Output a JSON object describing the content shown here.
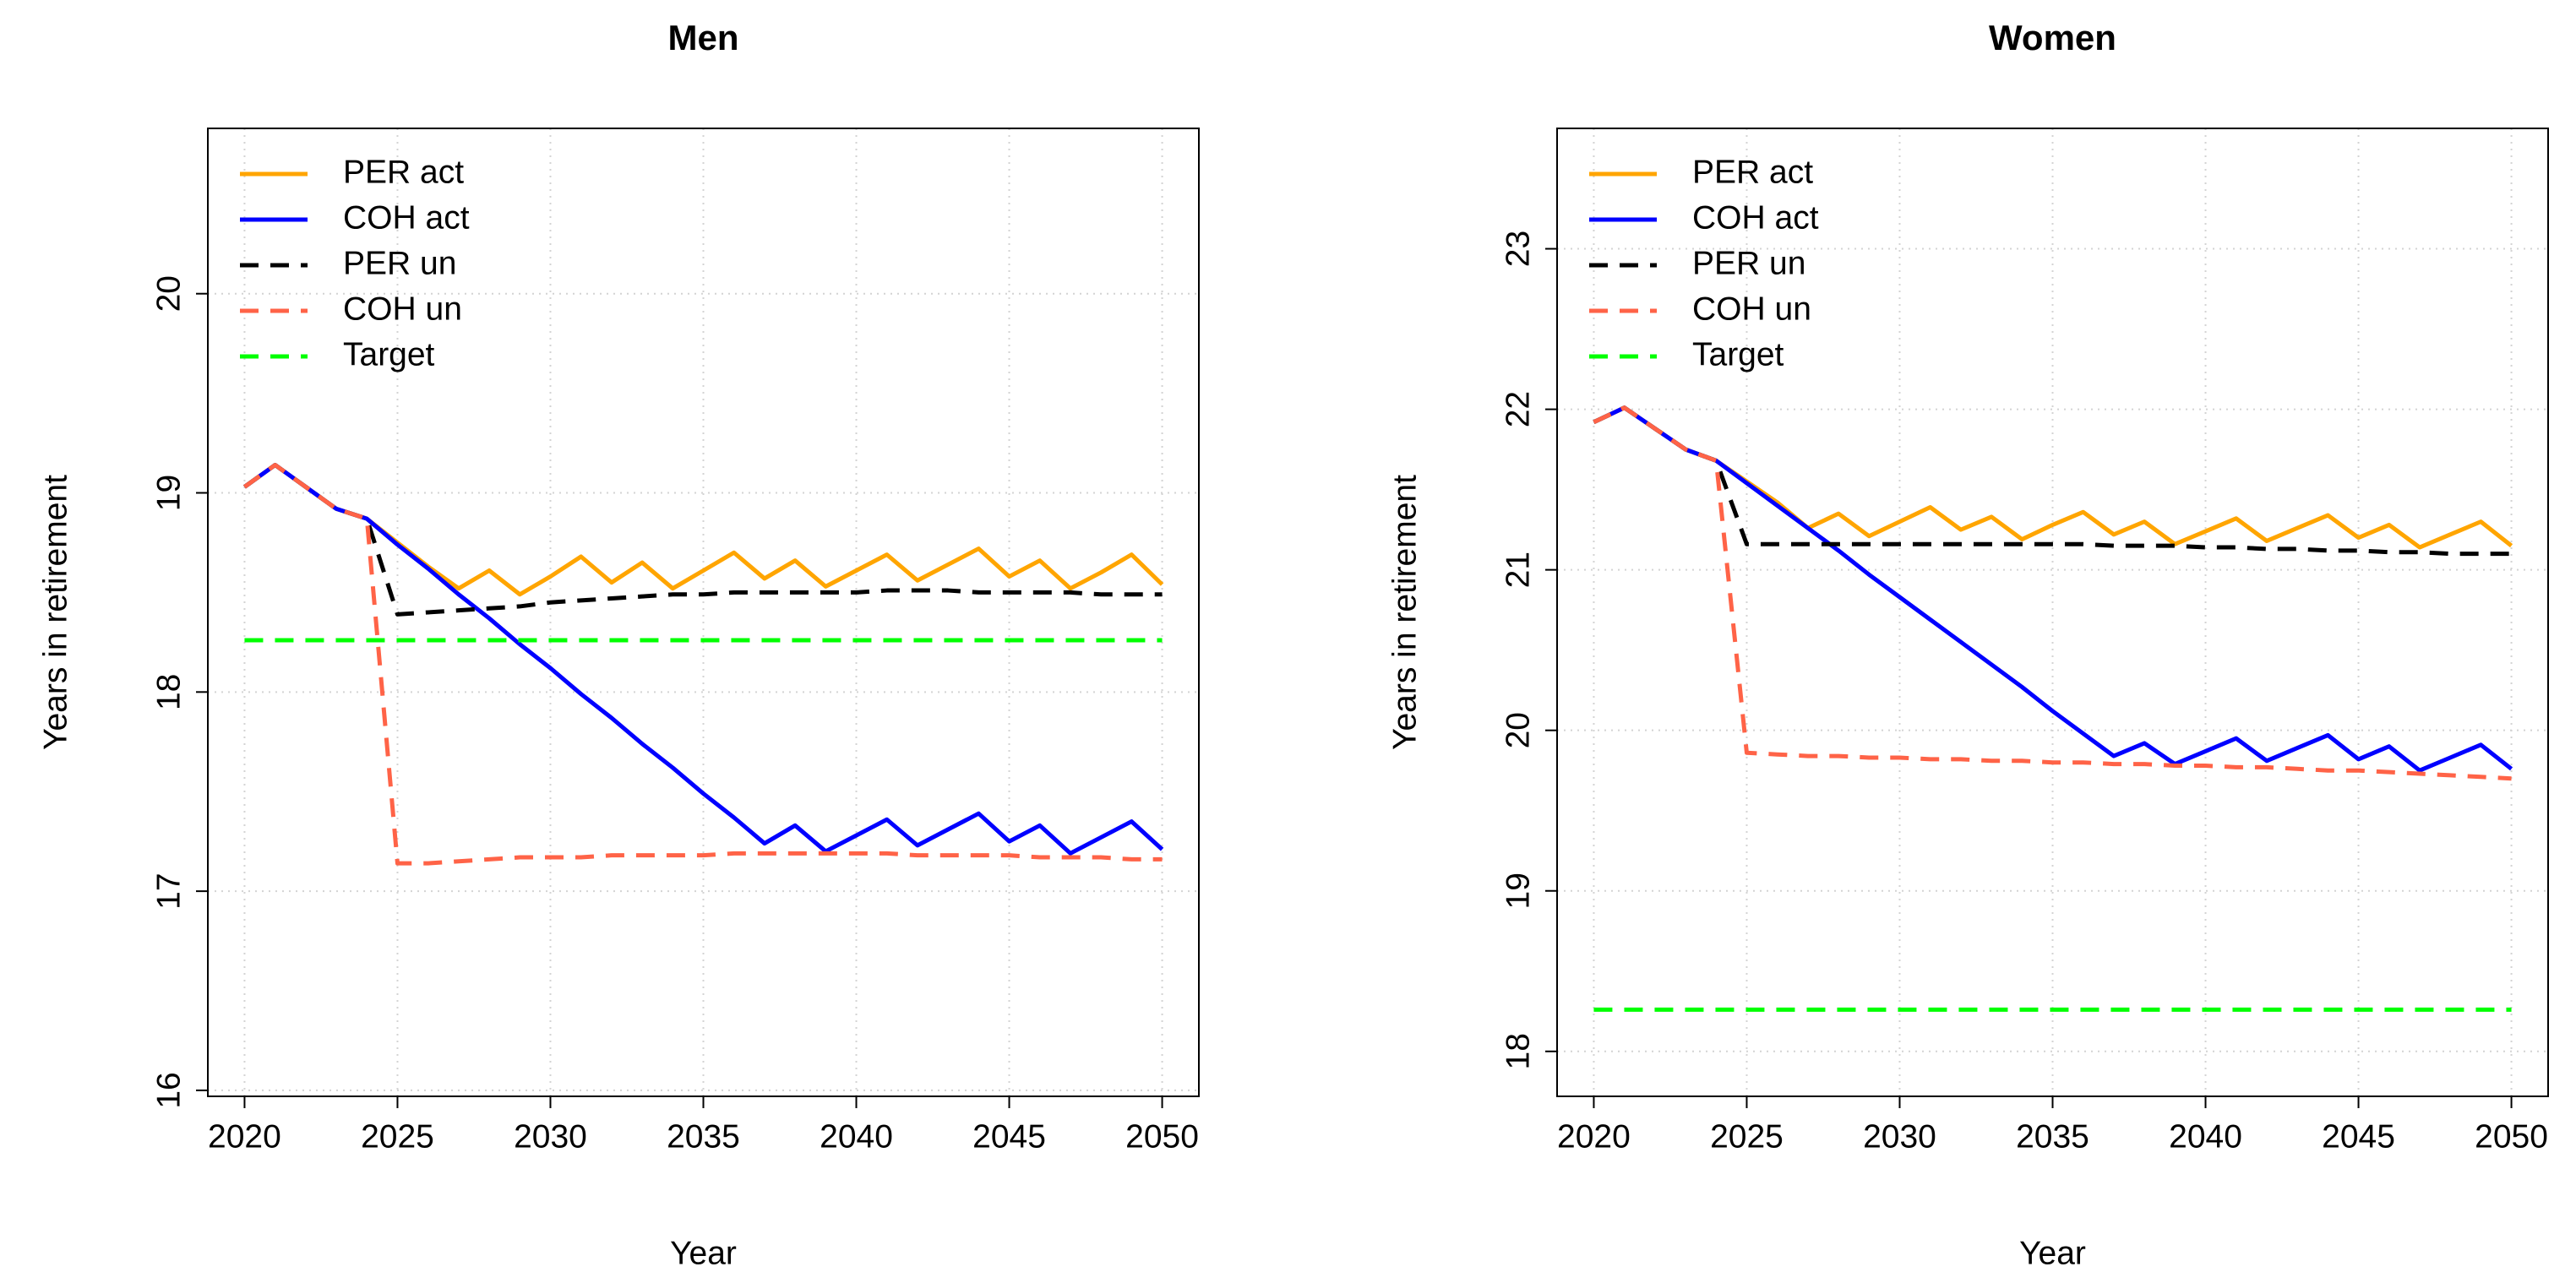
{
  "chart_data": [
    {
      "type": "line",
      "title": "Men",
      "x_label": "Year",
      "y_label": "Years in retirement",
      "x": [
        2020,
        2021,
        2022,
        2023,
        2024,
        2025,
        2026,
        2027,
        2028,
        2029,
        2030,
        2031,
        2032,
        2033,
        2034,
        2035,
        2036,
        2037,
        2038,
        2039,
        2040,
        2041,
        2042,
        2043,
        2044,
        2045,
        2046,
        2047,
        2048,
        2049,
        2050
      ],
      "xlim": [
        2018.8,
        2051.2
      ],
      "xticks": [
        2020,
        2025,
        2030,
        2035,
        2040,
        2045,
        2050
      ],
      "ylim": [
        15.97,
        20.83
      ],
      "yticks": [
        16,
        17,
        18,
        19,
        20
      ],
      "grid": true,
      "legend": "top-left",
      "series": [
        {
          "name": "PER act",
          "color": "#FFA500",
          "linestyle": "solid",
          "values": [
            19.03,
            19.14,
            19.03,
            18.92,
            18.87,
            18.75,
            18.63,
            18.52,
            18.61,
            18.49,
            18.58,
            18.68,
            18.55,
            18.65,
            18.52,
            18.61,
            18.7,
            18.57,
            18.66,
            18.53,
            18.61,
            18.69,
            18.56,
            18.64,
            18.72,
            18.58,
            18.66,
            18.52,
            18.6,
            18.69,
            18.54
          ]
        },
        {
          "name": "COH act",
          "color": "#0000FF",
          "linestyle": "solid",
          "values": [
            19.03,
            19.14,
            19.03,
            18.92,
            18.87,
            18.74,
            18.62,
            18.49,
            18.37,
            18.24,
            18.12,
            17.99,
            17.87,
            17.74,
            17.62,
            17.49,
            17.37,
            17.24,
            17.33,
            17.2,
            17.28,
            17.36,
            17.23,
            17.31,
            17.39,
            17.25,
            17.33,
            17.19,
            17.27,
            17.35,
            17.21
          ]
        },
        {
          "name": "PER un",
          "color": "#000000",
          "linestyle": "dashed",
          "values": [
            19.03,
            19.14,
            19.03,
            18.92,
            18.87,
            18.39,
            18.4,
            18.41,
            18.42,
            18.43,
            18.45,
            18.46,
            18.47,
            18.48,
            18.49,
            18.49,
            18.5,
            18.5,
            18.5,
            18.5,
            18.5,
            18.51,
            18.51,
            18.51,
            18.5,
            18.5,
            18.5,
            18.5,
            18.49,
            18.49,
            18.49
          ]
        },
        {
          "name": "COH un",
          "color": "#FF6347",
          "linestyle": "dashed",
          "values": [
            19.03,
            19.14,
            19.03,
            18.92,
            18.87,
            17.14,
            17.14,
            17.15,
            17.16,
            17.17,
            17.17,
            17.17,
            17.18,
            17.18,
            17.18,
            17.18,
            17.19,
            17.19,
            17.19,
            17.19,
            17.19,
            17.19,
            17.18,
            17.18,
            17.18,
            17.18,
            17.17,
            17.17,
            17.17,
            17.16,
            17.16
          ]
        },
        {
          "name": "Target",
          "color": "#00FF00",
          "linestyle": "dashed",
          "values": [
            18.26,
            18.26,
            18.26,
            18.26,
            18.26,
            18.26,
            18.26,
            18.26,
            18.26,
            18.26,
            18.26,
            18.26,
            18.26,
            18.26,
            18.26,
            18.26,
            18.26,
            18.26,
            18.26,
            18.26,
            18.26,
            18.26,
            18.26,
            18.26,
            18.26,
            18.26,
            18.26,
            18.26,
            18.26,
            18.26,
            18.26
          ]
        }
      ]
    },
    {
      "type": "line",
      "title": "Women",
      "x_label": "Year",
      "y_label": "Years in retirement",
      "x": [
        2020,
        2021,
        2022,
        2023,
        2024,
        2025,
        2026,
        2027,
        2028,
        2029,
        2030,
        2031,
        2032,
        2033,
        2034,
        2035,
        2036,
        2037,
        2038,
        2039,
        2040,
        2041,
        2042,
        2043,
        2044,
        2045,
        2046,
        2047,
        2048,
        2049,
        2050
      ],
      "xlim": [
        2018.8,
        2051.2
      ],
      "xticks": [
        2020,
        2025,
        2030,
        2035,
        2040,
        2045,
        2050
      ],
      "ylim": [
        17.72,
        23.75
      ],
      "yticks": [
        18,
        19,
        20,
        21,
        22,
        23
      ],
      "grid": true,
      "legend": "top-left",
      "series": [
        {
          "name": "PER act",
          "color": "#FFA500",
          "linestyle": "solid",
          "values": [
            21.92,
            22.01,
            21.88,
            21.75,
            21.68,
            21.55,
            21.42,
            21.26,
            21.35,
            21.21,
            21.3,
            21.39,
            21.25,
            21.33,
            21.19,
            21.28,
            21.36,
            21.22,
            21.3,
            21.16,
            21.24,
            21.32,
            21.18,
            21.26,
            21.34,
            21.2,
            21.28,
            21.14,
            21.22,
            21.3,
            21.15
          ]
        },
        {
          "name": "COH act",
          "color": "#0000FF",
          "linestyle": "solid",
          "values": [
            21.92,
            22.01,
            21.88,
            21.75,
            21.68,
            21.54,
            21.4,
            21.26,
            21.12,
            20.97,
            20.83,
            20.69,
            20.55,
            20.41,
            20.27,
            20.12,
            19.98,
            19.84,
            19.92,
            19.79,
            19.87,
            19.95,
            19.81,
            19.89,
            19.97,
            19.82,
            19.9,
            19.75,
            19.83,
            19.91,
            19.76
          ]
        },
        {
          "name": "PER un",
          "color": "#000000",
          "linestyle": "dashed",
          "values": [
            21.92,
            22.01,
            21.88,
            21.75,
            21.68,
            21.16,
            21.16,
            21.16,
            21.16,
            21.16,
            21.16,
            21.16,
            21.16,
            21.16,
            21.16,
            21.16,
            21.16,
            21.15,
            21.15,
            21.15,
            21.14,
            21.14,
            21.13,
            21.13,
            21.12,
            21.12,
            21.11,
            21.11,
            21.1,
            21.1,
            21.1
          ]
        },
        {
          "name": "COH un",
          "color": "#FF6347",
          "linestyle": "dashed",
          "values": [
            21.92,
            22.01,
            21.88,
            21.75,
            21.68,
            19.86,
            19.85,
            19.84,
            19.84,
            19.83,
            19.83,
            19.82,
            19.82,
            19.81,
            19.81,
            19.8,
            19.8,
            19.79,
            19.79,
            19.78,
            19.78,
            19.77,
            19.77,
            19.76,
            19.75,
            19.75,
            19.74,
            19.73,
            19.72,
            19.71,
            19.7
          ]
        },
        {
          "name": "Target",
          "color": "#00FF00",
          "linestyle": "dashed",
          "values": [
            18.26,
            18.26,
            18.26,
            18.26,
            18.26,
            18.26,
            18.26,
            18.26,
            18.26,
            18.26,
            18.26,
            18.26,
            18.26,
            18.26,
            18.26,
            18.26,
            18.26,
            18.26,
            18.26,
            18.26,
            18.26,
            18.26,
            18.26,
            18.26,
            18.26,
            18.26,
            18.26,
            18.26,
            18.26,
            18.26,
            18.26
          ]
        }
      ]
    }
  ]
}
